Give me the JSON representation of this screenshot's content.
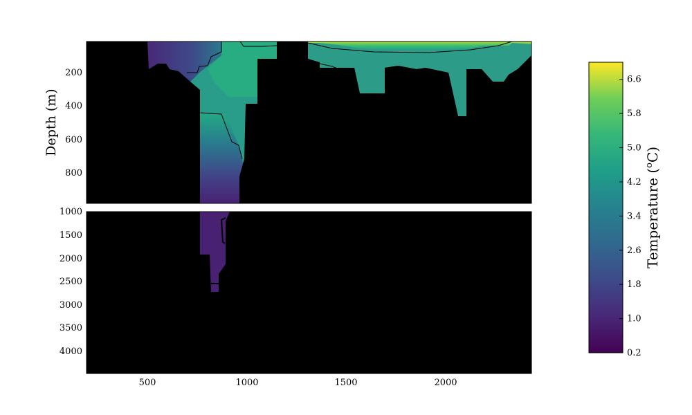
{
  "chart_data": {
    "type": "heatmap",
    "title": "",
    "xlabel": "",
    "ylabel": "Depth (m)",
    "xlim": [
      200,
      2430
    ],
    "x_ticks": [
      500,
      1000,
      1500,
      2000
    ],
    "top_panel": {
      "ylim": [
        970,
        0
      ],
      "y_ticks": [
        200,
        400,
        600,
        800
      ]
    },
    "bottom_panel": {
      "ylim": [
        4500,
        1000
      ],
      "y_ticks": [
        1000,
        1500,
        2000,
        2500,
        3000,
        3500,
        4000
      ]
    },
    "colorbar": {
      "label": "Temperature (°C)",
      "label_base": "Temperature (",
      "label_sup": "o",
      "label_end": "C)",
      "range": [
        0.2,
        7.0
      ],
      "ticks": [
        0.2,
        1.0,
        1.8,
        2.6,
        3.4,
        4.2,
        5.0,
        5.8,
        6.6
      ],
      "tick_labels": [
        "0.2",
        "1.0",
        "1.8",
        "2.6",
        "3.4",
        "4.2",
        "5.0",
        "5.8",
        "6.6"
      ],
      "colormap": "viridis"
    },
    "mask_color": "#000000",
    "sections": [
      {
        "x0": 200,
        "x1": 1150,
        "d_range": [
          0,
          1000
        ],
        "t_top": 1.0,
        "t_bottom": 0.5,
        "t_mid": 3.3
      },
      {
        "x0": 1150,
        "x1": 1300,
        "d_range": [
          0,
          0
        ],
        "t_top": 0,
        "t_bottom": 0,
        "t_mid": 0
      },
      {
        "x0": 1300,
        "x1": 2430,
        "d_range": [
          0,
          470
        ],
        "t_top": 6.3,
        "t_bottom": 3.5,
        "t_mid": 4.3
      }
    ]
  }
}
